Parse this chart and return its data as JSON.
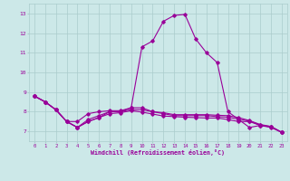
{
  "xlabel": "Windchill (Refroidissement éolien,°C)",
  "background_color": "#cce8e8",
  "grid_color": "#aacccc",
  "line_color": "#990099",
  "xlim": [
    -0.5,
    23.5
  ],
  "ylim": [
    6.5,
    13.5
  ],
  "yticks": [
    7,
    8,
    9,
    10,
    11,
    12,
    13
  ],
  "xticks": [
    0,
    1,
    2,
    3,
    4,
    5,
    6,
    7,
    8,
    9,
    10,
    11,
    12,
    13,
    14,
    15,
    16,
    17,
    18,
    19,
    20,
    21,
    22,
    23
  ],
  "series": [
    [
      8.8,
      8.5,
      8.1,
      7.5,
      7.2,
      7.5,
      7.7,
      8.0,
      8.0,
      8.2,
      11.3,
      11.6,
      12.6,
      12.9,
      12.95,
      11.7,
      11.0,
      10.5,
      8.0,
      7.6,
      7.2,
      7.3,
      7.25,
      6.95
    ],
    [
      8.8,
      8.5,
      8.1,
      7.5,
      7.5,
      7.9,
      8.0,
      8.05,
      8.05,
      8.2,
      8.2,
      8.0,
      7.95,
      7.85,
      7.85,
      7.85,
      7.85,
      7.82,
      7.8,
      7.7,
      7.55,
      7.35,
      7.25,
      6.95
    ],
    [
      8.8,
      8.5,
      8.1,
      7.5,
      7.2,
      7.6,
      7.8,
      8.0,
      8.0,
      8.1,
      8.1,
      8.0,
      7.9,
      7.8,
      7.8,
      7.8,
      7.8,
      7.75,
      7.72,
      7.62,
      7.52,
      7.32,
      7.22,
      6.95
    ],
    [
      8.8,
      8.5,
      8.1,
      7.5,
      7.2,
      7.5,
      7.7,
      7.9,
      7.95,
      8.05,
      7.98,
      7.88,
      7.78,
      7.75,
      7.72,
      7.7,
      7.68,
      7.68,
      7.6,
      7.5,
      7.5,
      7.3,
      7.2,
      6.95
    ]
  ]
}
